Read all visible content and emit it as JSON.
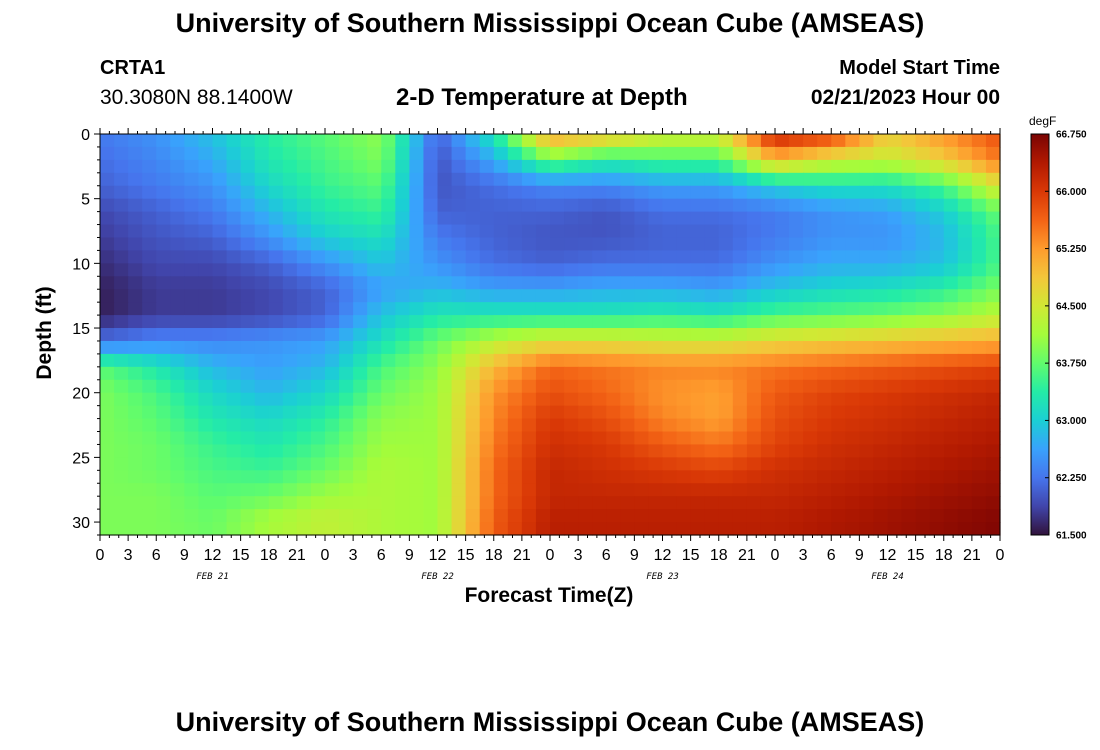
{
  "header": {
    "title": "University of Southern Mississippi Ocean Cube (AMSEAS)",
    "station": "CRTA1",
    "coordinates": "30.3080N  88.1400W",
    "subtitle": "2-D Temperature at Depth",
    "model_start_label": "Model Start Time",
    "model_start_value": "02/21/2023 Hour 00"
  },
  "footer": {
    "title": "University of Southern Mississippi Ocean Cube (AMSEAS)"
  },
  "chart_data": {
    "type": "heatmap",
    "title": "2-D Temperature at Depth",
    "xlabel": "Forecast Time(Z)",
    "ylabel": "Depth (ft)",
    "x_unit": "hours since 02/21/2023 Hour 00",
    "xlim": [
      0,
      96
    ],
    "ylim": [
      31,
      0
    ],
    "y_ticks": [
      "0",
      "5",
      "10",
      "15",
      "20",
      "25",
      "30"
    ],
    "y_tick_values": [
      0,
      5,
      10,
      15,
      20,
      25,
      30
    ],
    "x_tick_labels": [
      "0",
      "3",
      "6",
      "9",
      "12",
      "15",
      "18",
      "21",
      "0",
      "3",
      "6",
      "9",
      "12",
      "15",
      "18",
      "21",
      "0",
      "3",
      "6",
      "9",
      "12",
      "15",
      "18",
      "21",
      "0",
      "3",
      "6",
      "9",
      "12",
      "15",
      "18",
      "21",
      "0"
    ],
    "date_labels": [
      {
        "label": "FEB 21",
        "hour": 12
      },
      {
        "label": "FEB 22",
        "hour": 36
      },
      {
        "label": "FEB 23",
        "hour": 60
      },
      {
        "label": "FEB 24",
        "hour": 84
      }
    ],
    "colorbar": {
      "unit": "degF",
      "min": 61.5,
      "max": 66.75,
      "tick_labels": [
        "66.750",
        "66.000",
        "65.250",
        "64.500",
        "63.750",
        "63.000",
        "62.250",
        "61.500"
      ],
      "tick_values": [
        66.75,
        66.0,
        65.25,
        64.5,
        63.75,
        63.0,
        62.25,
        61.5
      ],
      "colors": [
        "#30123b",
        "#4145ab",
        "#4675ed",
        "#39a2fc",
        "#1bcfd4",
        "#24eca6",
        "#61fc6c",
        "#a4fc3b",
        "#d1e834",
        "#f3c63a",
        "#fe9b2d",
        "#f36315",
        "#d93806",
        "#b11901",
        "#7a0403"
      ]
    },
    "depths": [
      0,
      2,
      4,
      6,
      8,
      10,
      12,
      14,
      16,
      18,
      20,
      22,
      24,
      26,
      28,
      30,
      31
    ],
    "hours": [
      0,
      6,
      12,
      18,
      24,
      30,
      36,
      42,
      48,
      54,
      60,
      66,
      72,
      78,
      84,
      90,
      96
    ],
    "values": [
      [
        62.3,
        62.5,
        62.9,
        63.4,
        63.7,
        64.0,
        62.1,
        63.3,
        65.3,
        65.0,
        64.5,
        64.5,
        66.3,
        66.0,
        64.8,
        65.3,
        65.8
      ],
      [
        62.2,
        62.4,
        62.7,
        63.3,
        63.6,
        63.9,
        62.0,
        62.7,
        63.8,
        63.4,
        63.6,
        63.6,
        65.0,
        64.5,
        64.4,
        64.8,
        65.5
      ],
      [
        62.1,
        62.3,
        62.5,
        63.1,
        63.5,
        63.7,
        62.0,
        62.2,
        62.4,
        62.4,
        62.6,
        62.6,
        63.0,
        63.2,
        63.2,
        63.6,
        64.6
      ],
      [
        61.9,
        62.1,
        62.3,
        62.8,
        63.3,
        63.5,
        62.1,
        62.1,
        62.1,
        62.0,
        62.2,
        62.2,
        62.3,
        62.5,
        62.6,
        63.0,
        63.8
      ],
      [
        61.8,
        62.0,
        62.1,
        62.5,
        63.0,
        63.2,
        62.3,
        62.1,
        62.0,
        62.0,
        62.1,
        62.1,
        62.3,
        62.5,
        62.5,
        62.8,
        63.6
      ],
      [
        61.7,
        61.9,
        61.9,
        62.1,
        62.5,
        62.9,
        62.5,
        62.2,
        62.1,
        62.2,
        62.2,
        62.2,
        62.5,
        62.7,
        62.7,
        62.9,
        63.6
      ],
      [
        61.6,
        61.8,
        61.8,
        61.9,
        62.1,
        62.6,
        62.8,
        62.6,
        62.6,
        62.7,
        62.7,
        62.6,
        62.9,
        63.1,
        63.2,
        63.4,
        63.9
      ],
      [
        61.6,
        61.8,
        61.8,
        61.9,
        62.1,
        62.9,
        63.3,
        63.3,
        63.3,
        63.3,
        63.4,
        63.3,
        63.6,
        63.7,
        63.8,
        64.0,
        64.3
      ],
      [
        62.2,
        62.4,
        62.4,
        62.5,
        62.6,
        63.2,
        63.8,
        64.3,
        64.6,
        64.6,
        64.5,
        64.5,
        64.7,
        64.8,
        64.9,
        65.0,
        65.1
      ],
      [
        63.7,
        63.3,
        62.8,
        62.6,
        62.8,
        63.6,
        64.0,
        65.0,
        65.6,
        65.5,
        65.4,
        65.4,
        65.5,
        65.6,
        65.7,
        65.8,
        65.9
      ],
      [
        63.9,
        63.6,
        63.1,
        62.8,
        63.1,
        63.8,
        64.1,
        65.3,
        65.8,
        65.6,
        65.3,
        65.2,
        65.7,
        65.9,
        66.0,
        66.1,
        66.2
      ],
      [
        63.9,
        63.7,
        63.3,
        63.1,
        63.4,
        64.0,
        64.1,
        65.4,
        66.0,
        65.8,
        65.4,
        65.2,
        65.8,
        66.0,
        66.1,
        66.2,
        66.3
      ],
      [
        63.9,
        63.8,
        63.5,
        63.3,
        63.6,
        64.1,
        64.1,
        65.5,
        66.1,
        66.0,
        65.7,
        65.5,
        65.9,
        66.1,
        66.2,
        66.3,
        66.4
      ],
      [
        63.9,
        63.8,
        63.6,
        63.5,
        63.8,
        64.2,
        64.1,
        65.6,
        66.2,
        66.1,
        66.0,
        65.9,
        66.1,
        66.2,
        66.3,
        66.4,
        66.5
      ],
      [
        63.9,
        63.9,
        63.7,
        63.8,
        64.1,
        64.2,
        64.1,
        65.6,
        66.2,
        66.2,
        66.2,
        66.2,
        66.2,
        66.3,
        66.4,
        66.5,
        66.6
      ],
      [
        63.9,
        63.9,
        63.8,
        64.2,
        64.4,
        64.2,
        64.1,
        65.7,
        66.3,
        66.3,
        66.3,
        66.3,
        66.3,
        66.4,
        66.5,
        66.6,
        66.7
      ],
      [
        63.9,
        63.9,
        63.8,
        64.1,
        64.3,
        64.2,
        64.1,
        65.7,
        66.3,
        66.3,
        66.3,
        66.3,
        66.3,
        66.4,
        66.5,
        66.6,
        66.7
      ]
    ]
  }
}
